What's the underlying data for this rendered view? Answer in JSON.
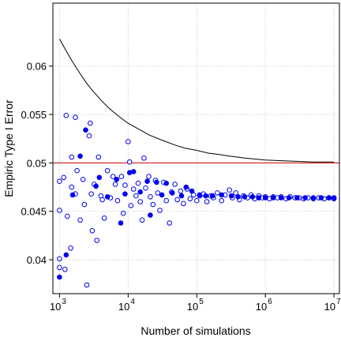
{
  "chart_data": {
    "type": "scatter",
    "title": "",
    "xlabel": "Number of simulations",
    "ylabel": "Empiric Type I Error",
    "x_scale": "log",
    "xlim": [
      800,
      12000000
    ],
    "ylim": [
      0.0365,
      0.0665
    ],
    "x_ticks": [
      {
        "value": 1000,
        "base": "10",
        "exp": "3"
      },
      {
        "value": 10000,
        "base": "10",
        "exp": "4"
      },
      {
        "value": 100000,
        "base": "10",
        "exp": "5"
      },
      {
        "value": 1000000,
        "base": "10",
        "exp": "6"
      },
      {
        "value": 10000000,
        "base": "10",
        "exp": "7"
      }
    ],
    "y_ticks": [
      {
        "value": 0.04,
        "label": "0.04"
      },
      {
        "value": 0.045,
        "label": "0.045"
      },
      {
        "value": 0.05,
        "label": "0.05"
      },
      {
        "value": 0.055,
        "label": "0.055"
      },
      {
        "value": 0.06,
        "label": "0.06"
      }
    ],
    "grid": true,
    "reference_line": {
      "y": 0.05,
      "color": "#cc0000"
    },
    "bound_curve": {
      "color": "#000000",
      "points": [
        [
          1000,
          0.0628
        ],
        [
          1200,
          0.0618
        ],
        [
          1500,
          0.0606
        ],
        [
          2000,
          0.0592
        ],
        [
          2500,
          0.0582
        ],
        [
          3000,
          0.0575
        ],
        [
          4000,
          0.0565
        ],
        [
          5000,
          0.0558
        ],
        [
          6000,
          0.0553
        ],
        [
          8000,
          0.0546
        ],
        [
          10000,
          0.0541
        ],
        [
          15000,
          0.0534
        ],
        [
          20000,
          0.0529
        ],
        [
          30000,
          0.0524
        ],
        [
          50000,
          0.0518
        ],
        [
          70000,
          0.0515
        ],
        [
          100000,
          0.0513
        ],
        [
          150000,
          0.051
        ],
        [
          200000,
          0.0509
        ],
        [
          300000,
          0.0507
        ],
        [
          500000,
          0.0505
        ],
        [
          1000000,
          0.0503
        ],
        [
          2000000,
          0.0502
        ],
        [
          5000000,
          0.0501
        ],
        [
          10000000,
          0.0501
        ]
      ]
    },
    "point_color": "#0000ee",
    "series": [
      {
        "style": "open",
        "points": [
          [
            1000,
            0.0401
          ],
          [
            1000,
            0.0392
          ],
          [
            1000,
            0.0451
          ],
          [
            1000,
            0.0481
          ],
          [
            1150,
            0.0485
          ],
          [
            1200,
            0.039
          ],
          [
            1250,
            0.0549
          ],
          [
            1300,
            0.0445
          ],
          [
            1450,
            0.0412
          ],
          [
            1500,
            0.0475
          ],
          [
            1500,
            0.0506
          ],
          [
            1700,
            0.0547
          ],
          [
            1700,
            0.0468
          ],
          [
            1800,
            0.0492
          ],
          [
            2000,
            0.0441
          ],
          [
            2200,
            0.0483
          ],
          [
            2300,
            0.0457
          ],
          [
            2500,
            0.0374
          ],
          [
            2700,
            0.0528
          ],
          [
            2800,
            0.0541
          ],
          [
            2900,
            0.0468
          ],
          [
            3000,
            0.043
          ],
          [
            3200,
            0.0478
          ],
          [
            3500,
            0.042
          ],
          [
            3700,
            0.0506
          ],
          [
            4000,
            0.0466
          ],
          [
            4200,
            0.0462
          ],
          [
            4500,
            0.0443
          ],
          [
            5000,
            0.0492
          ],
          [
            5500,
            0.0464
          ],
          [
            6000,
            0.0486
          ],
          [
            6500,
            0.0478
          ],
          [
            7000,
            0.0461
          ],
          [
            8000,
            0.0486
          ],
          [
            8500,
            0.0448
          ],
          [
            9000,
            0.0477
          ],
          [
            10000,
            0.0522
          ],
          [
            10500,
            0.0501
          ],
          [
            11000,
            0.0456
          ],
          [
            12000,
            0.0473
          ],
          [
            13000,
            0.0466
          ],
          [
            14000,
            0.0479
          ],
          [
            15000,
            0.046
          ],
          [
            16000,
            0.0441
          ],
          [
            17000,
            0.0505
          ],
          [
            18000,
            0.0474
          ],
          [
            20000,
            0.0486
          ],
          [
            21000,
            0.0465
          ],
          [
            23000,
            0.0457
          ],
          [
            25000,
            0.0482
          ],
          [
            27000,
            0.0469
          ],
          [
            29000,
            0.0451
          ],
          [
            33000,
            0.048
          ],
          [
            36000,
            0.0461
          ],
          [
            40000,
            0.0438
          ],
          [
            43000,
            0.047
          ],
          [
            48000,
            0.0478
          ],
          [
            52000,
            0.0462
          ],
          [
            58000,
            0.0471
          ],
          [
            64000,
            0.0458
          ],
          [
            72000,
            0.0473
          ],
          [
            80000,
            0.0463
          ],
          [
            90000,
            0.0467
          ],
          [
            100000,
            0.0461
          ],
          [
            110000,
            0.0466
          ],
          [
            125000,
            0.0468
          ],
          [
            140000,
            0.046
          ],
          [
            160000,
            0.0466
          ],
          [
            175000,
            0.0464
          ],
          [
            200000,
            0.0469
          ],
          [
            230000,
            0.0461
          ],
          [
            260000,
            0.0467
          ],
          [
            300000,
            0.0472
          ],
          [
            330000,
            0.0464
          ],
          [
            370000,
            0.0469
          ],
          [
            420000,
            0.0462
          ],
          [
            480000,
            0.0466
          ],
          [
            550000,
            0.0464
          ],
          [
            620000,
            0.0467
          ],
          [
            700000,
            0.0463
          ],
          [
            800000,
            0.0466
          ],
          [
            900000,
            0.0464
          ],
          [
            1000000,
            0.0465
          ],
          [
            1150000,
            0.0463
          ],
          [
            1300000,
            0.0465
          ],
          [
            1500000,
            0.0464
          ],
          [
            1700000,
            0.0465
          ],
          [
            2000000,
            0.0463
          ],
          [
            2300000,
            0.0465
          ],
          [
            2700000,
            0.0464
          ],
          [
            3100000,
            0.0464
          ],
          [
            3600000,
            0.0463
          ],
          [
            4200000,
            0.0464
          ],
          [
            5000000,
            0.0463
          ],
          [
            6000000,
            0.0464
          ],
          [
            7200000,
            0.0463
          ],
          [
            8500000,
            0.0464
          ],
          [
            10000000,
            0.0463
          ]
        ]
      },
      {
        "style": "filled",
        "points": [
          [
            1000,
            0.0382
          ],
          [
            1250,
            0.0405
          ],
          [
            1550,
            0.0467
          ],
          [
            2000,
            0.0507
          ],
          [
            2400,
            0.0534
          ],
          [
            3400,
            0.0476
          ],
          [
            3800,
            0.0485
          ],
          [
            5000,
            0.0465
          ],
          [
            6800,
            0.0483
          ],
          [
            7800,
            0.0438
          ],
          [
            9000,
            0.0468
          ],
          [
            10500,
            0.049
          ],
          [
            12000,
            0.0491
          ],
          [
            15000,
            0.047
          ],
          [
            19000,
            0.0481
          ],
          [
            21000,
            0.0446
          ],
          [
            26000,
            0.048
          ],
          [
            31000,
            0.0467
          ],
          [
            36000,
            0.0479
          ],
          [
            44000,
            0.0469
          ],
          [
            60000,
            0.0466
          ],
          [
            70000,
            0.0475
          ],
          [
            85000,
            0.0471
          ],
          [
            110000,
            0.0467
          ],
          [
            135000,
            0.0466
          ],
          [
            170000,
            0.0466
          ],
          [
            230000,
            0.0467
          ],
          [
            320000,
            0.0466
          ],
          [
            400000,
            0.0465
          ],
          [
            500000,
            0.0465
          ],
          [
            650000,
            0.0465
          ],
          [
            800000,
            0.0464
          ],
          [
            1000000,
            0.0464
          ],
          [
            1300000,
            0.0464
          ],
          [
            1700000,
            0.0464
          ],
          [
            2200000,
            0.0464
          ],
          [
            2900000,
            0.0464
          ],
          [
            3800000,
            0.0464
          ],
          [
            5000000,
            0.0464
          ],
          [
            6500000,
            0.0464
          ],
          [
            8400000,
            0.0464
          ],
          [
            10000000,
            0.0464
          ]
        ]
      }
    ]
  }
}
